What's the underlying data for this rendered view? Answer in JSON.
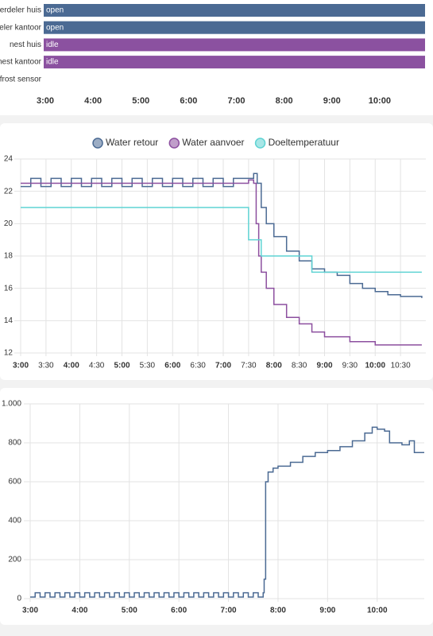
{
  "chart_data": [
    {
      "type": "timeline",
      "rows": [
        {
          "name": "verdeler huis",
          "state": "open",
          "color": "#4b6a93",
          "start": 3.0,
          "end": 10.95
        },
        {
          "name": "deler kantoor",
          "state": "open",
          "color": "#4b6a93",
          "start": 3.0,
          "end": 10.95
        },
        {
          "name": "nest huis",
          "state": "idle",
          "color": "#8b51a0",
          "start": 3.0,
          "end": 10.95
        },
        {
          "name": "nest kantoor",
          "state": "idle",
          "color": "#8b51a0",
          "start": 3.0,
          "end": 10.95
        },
        {
          "name": "efrost sensor"
        }
      ],
      "xlim": [
        3,
        10.95
      ],
      "xticks": [
        {
          "value": 3,
          "label": "3:00"
        },
        {
          "value": 4,
          "label": "4:00"
        },
        {
          "value": 5,
          "label": "5:00"
        },
        {
          "value": 6,
          "label": "6:00"
        },
        {
          "value": 7,
          "label": "7:00"
        },
        {
          "value": 8,
          "label": "8:00"
        },
        {
          "value": 9,
          "label": "9:00"
        },
        {
          "value": 10,
          "label": "10:00"
        }
      ]
    },
    {
      "type": "line",
      "series": [
        {
          "name": "Water retour",
          "color": "#4b6a93",
          "x": [
            3.0,
            3.2,
            3.4,
            3.6,
            3.8,
            4.0,
            4.2,
            4.4,
            4.6,
            4.8,
            5.0,
            5.2,
            5.4,
            5.6,
            5.8,
            6.0,
            6.2,
            6.4,
            6.6,
            6.8,
            7.0,
            7.2,
            7.4,
            7.5,
            7.6,
            7.67,
            7.75,
            7.85,
            8.0,
            8.25,
            8.5,
            8.75,
            9.0,
            9.25,
            9.5,
            9.75,
            10.0,
            10.25,
            10.5,
            10.92
          ],
          "values": [
            22.3,
            22.8,
            22.3,
            22.8,
            22.3,
            22.8,
            22.3,
            22.8,
            22.3,
            22.8,
            22.3,
            22.8,
            22.3,
            22.8,
            22.3,
            22.8,
            22.3,
            22.8,
            22.3,
            22.8,
            22.3,
            22.8,
            22.8,
            22.8,
            23.1,
            22.5,
            21,
            20,
            19.2,
            18.3,
            17.7,
            17.2,
            17,
            16.8,
            16.3,
            16,
            15.8,
            15.6,
            15.5,
            15.4
          ]
        },
        {
          "name": "Water aanvoer",
          "color": "#8c4f9f",
          "x": [
            3.0,
            7.5,
            7.6,
            7.65,
            7.7,
            7.75,
            7.85,
            8.0,
            8.25,
            8.5,
            8.75,
            9.0,
            9.5,
            10.0,
            10.92
          ],
          "values": [
            22.5,
            22.7,
            22.5,
            20,
            18,
            17,
            16,
            15,
            14.2,
            13.8,
            13.3,
            13,
            12.7,
            12.5,
            12.5
          ]
        },
        {
          "name": "Doeltemperatuur",
          "color": "#5fd3d3",
          "x": [
            3.0,
            7.5,
            7.75,
            8.75,
            10.92
          ],
          "values": [
            21,
            19,
            18,
            17,
            17
          ]
        }
      ],
      "xlim": [
        3,
        11
      ],
      "ylim": [
        12,
        24
      ],
      "yticks": [
        12,
        14,
        16,
        18,
        20,
        22,
        24
      ],
      "xticks": [
        {
          "value": 3,
          "label": "3:00"
        },
        {
          "value": 3.5,
          "label": "3:30"
        },
        {
          "value": 4,
          "label": "4:00"
        },
        {
          "value": 4.5,
          "label": "4:30"
        },
        {
          "value": 5,
          "label": "5:00"
        },
        {
          "value": 5.5,
          "label": "5:30"
        },
        {
          "value": 6,
          "label": "6:00"
        },
        {
          "value": 6.5,
          "label": "6:30"
        },
        {
          "value": 7,
          "label": "7:00"
        },
        {
          "value": 7.5,
          "label": "7:30"
        },
        {
          "value": 8,
          "label": "8:00"
        },
        {
          "value": 8.5,
          "label": "8:30"
        },
        {
          "value": 9,
          "label": "9:00"
        },
        {
          "value": 9.5,
          "label": "9:30"
        },
        {
          "value": 10,
          "label": "10:00"
        },
        {
          "value": 10.5,
          "label": "10:30"
        }
      ],
      "legend": "top",
      "grid": true
    },
    {
      "type": "line",
      "series": [
        {
          "color": "#4b6a93",
          "x": [
            3.0,
            3.1,
            3.2,
            3.3,
            3.4,
            3.5,
            3.6,
            3.7,
            3.8,
            3.9,
            4.0,
            4.1,
            4.2,
            4.3,
            4.4,
            4.5,
            4.6,
            4.7,
            4.8,
            4.9,
            5.0,
            5.1,
            5.2,
            5.3,
            5.4,
            5.5,
            5.6,
            5.7,
            5.8,
            5.9,
            6.0,
            6.1,
            6.2,
            6.3,
            6.4,
            6.5,
            6.6,
            6.7,
            6.8,
            6.9,
            7.0,
            7.1,
            7.2,
            7.3,
            7.4,
            7.5,
            7.6,
            7.7,
            7.72,
            7.75,
            7.8,
            7.9,
            8.0,
            8.25,
            8.5,
            8.75,
            9.0,
            9.25,
            9.5,
            9.75,
            9.9,
            10.0,
            10.15,
            10.25,
            10.5,
            10.65,
            10.75,
            10.95
          ],
          "values": [
            8,
            30,
            8,
            30,
            8,
            30,
            8,
            30,
            8,
            30,
            8,
            30,
            8,
            30,
            8,
            30,
            8,
            30,
            8,
            30,
            8,
            30,
            8,
            30,
            8,
            30,
            8,
            30,
            8,
            30,
            8,
            30,
            8,
            30,
            8,
            30,
            8,
            30,
            8,
            30,
            8,
            30,
            8,
            30,
            8,
            30,
            8,
            30,
            100,
            600,
            650,
            670,
            680,
            700,
            730,
            750,
            760,
            780,
            810,
            850,
            880,
            870,
            860,
            800,
            790,
            810,
            750,
            750
          ]
        }
      ],
      "xlim": [
        3,
        10.95
      ],
      "ylim": [
        0,
        1000
      ],
      "yticks": [
        0,
        200,
        400,
        600,
        800,
        {
          "value": 1000,
          "label": "1.000"
        }
      ],
      "xticks": [
        {
          "value": 3,
          "label": "3:00"
        },
        {
          "value": 4,
          "label": "4:00"
        },
        {
          "value": 5,
          "label": "5:00"
        },
        {
          "value": 6,
          "label": "6:00"
        },
        {
          "value": 7,
          "label": "7:00"
        },
        {
          "value": 8,
          "label": "8:00"
        },
        {
          "value": 9,
          "label": "9:00"
        },
        {
          "value": 10,
          "label": "10:00"
        }
      ],
      "grid": true
    }
  ]
}
